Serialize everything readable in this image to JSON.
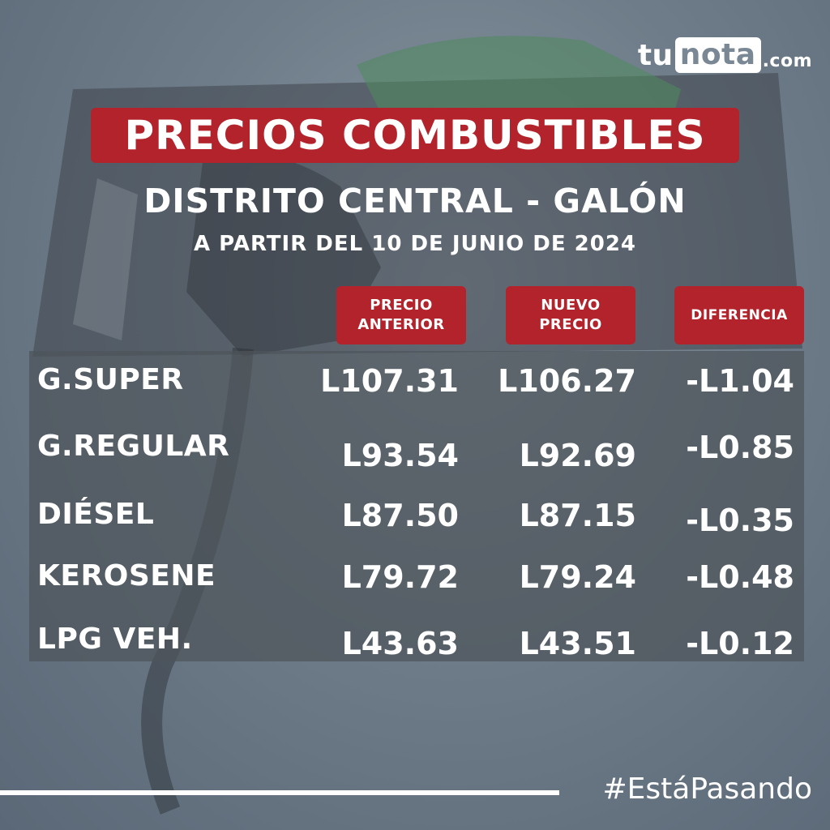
{
  "logo": {
    "tu": "tu",
    "nota": "nota",
    "com": ".com"
  },
  "title": "PRECIOS COMBUSTIBLES",
  "subtitle": "DISTRITO CENTRAL - GALÓN",
  "date_line": "A PARTIR DEL 10 DE JUNIO DE 2024",
  "headers": {
    "previous_line1": "PRECIO",
    "previous_line2": "ANTERIOR",
    "new_line1": "NUEVO",
    "new_line2": "PRECIO",
    "difference": "DIFERENCIA"
  },
  "rows": [
    {
      "name": "G.SUPER",
      "previous": "L107.31",
      "new": "L106.27",
      "difference": "-L1.04"
    },
    {
      "name": "G.REGULAR",
      "previous": "L93.54",
      "new": "L92.69",
      "difference": "-L0.85"
    },
    {
      "name": "DIÉSEL",
      "previous": "L87.50",
      "new": "L87.15",
      "difference": "-L0.35"
    },
    {
      "name": "KEROSENE",
      "previous": "L79.72",
      "new": "L79.24",
      "difference": "-L0.48"
    },
    {
      "name": "LPG VEH.",
      "previous": "L43.63",
      "new": "L43.51",
      "difference": "-L0.12"
    }
  ],
  "hashtag": "#EstáPasando",
  "colors": {
    "accent_red": "#b2232c",
    "background": "#6f7d8a",
    "table_bg": "#4e545a"
  },
  "decoration": "fuel-nozzle-illustration"
}
